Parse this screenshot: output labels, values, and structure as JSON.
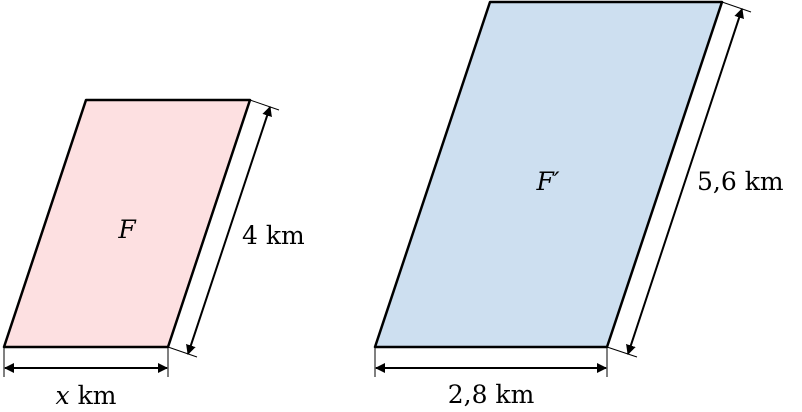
{
  "figures": [
    {
      "name": "F",
      "side_label": "4 km",
      "base_var": "x",
      "base_unit": "km",
      "fill": "#fde0e1"
    },
    {
      "name": "F′",
      "side_label": "5,6 km",
      "base_label": "2,8 km",
      "fill": "#cddff0"
    }
  ],
  "stroke_color": "#000000"
}
